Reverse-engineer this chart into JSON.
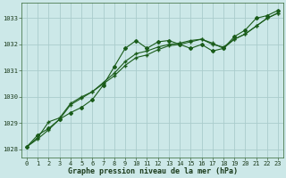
{
  "title": "Graphe pression niveau de la mer (hPa)",
  "bg_color": "#cce8e8",
  "grid_color": "#aacccc",
  "line_color": "#1a5c1a",
  "xlim": [
    -0.5,
    23.5
  ],
  "ylim": [
    1027.7,
    1033.6
  ],
  "yticks": [
    1028,
    1029,
    1030,
    1031,
    1032,
    1033
  ],
  "xticks": [
    0,
    1,
    2,
    3,
    4,
    5,
    6,
    7,
    8,
    9,
    10,
    11,
    12,
    13,
    14,
    15,
    16,
    17,
    18,
    19,
    20,
    21,
    22,
    23
  ],
  "series1": [
    1028.1,
    1028.55,
    1028.8,
    1029.15,
    1029.4,
    1029.6,
    1029.9,
    1030.45,
    1031.15,
    1031.85,
    1032.15,
    1031.85,
    1032.1,
    1032.15,
    1032.0,
    1031.85,
    1032.0,
    1031.75,
    1031.85,
    1032.3,
    1032.55,
    1033.0,
    1033.1,
    1033.3
  ],
  "series2": [
    1028.1,
    1028.4,
    1028.75,
    1029.15,
    1029.7,
    1029.95,
    1030.2,
    1030.55,
    1030.9,
    1031.35,
    1031.65,
    1031.75,
    1031.9,
    1032.0,
    1032.05,
    1032.15,
    1032.2,
    1032.05,
    1031.85,
    1032.2,
    1032.4,
    1032.7,
    1033.0,
    1033.2
  ],
  "series3": [
    1028.1,
    1028.45,
    1029.05,
    1029.2,
    1029.75,
    1030.0,
    1030.2,
    1030.5,
    1030.8,
    1031.2,
    1031.5,
    1031.6,
    1031.8,
    1031.95,
    1032.0,
    1032.1,
    1032.2,
    1032.0,
    1031.9,
    1032.2,
    1032.4,
    1032.7,
    1033.0,
    1033.2
  ],
  "title_fontsize": 6.0,
  "tick_fontsize": 5.0
}
